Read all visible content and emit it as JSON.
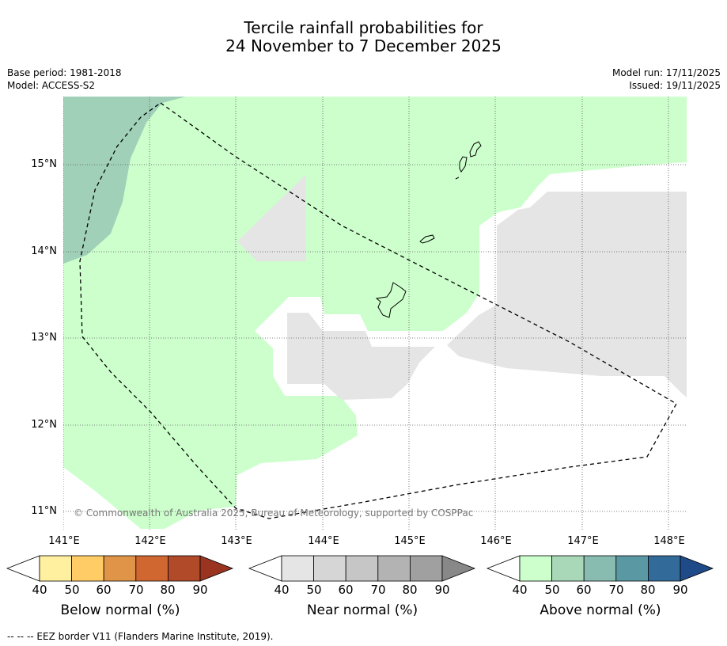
{
  "title": {
    "line1": "Tercile rainfall probabilities for",
    "line2": "24 November to 7 December 2025"
  },
  "meta": {
    "base_period": "Base period: 1981-2018",
    "model": "Model: ACCESS-S2",
    "model_run": "Model run: 17/11/2025",
    "issued": "Issued: 19/11/2025"
  },
  "map": {
    "lat_labels": [
      "15°N",
      "14°N",
      "13°N",
      "12°N",
      "11°N"
    ],
    "lon_labels": [
      "141°E",
      "142°E",
      "143°E",
      "144°E",
      "145°E",
      "146°E",
      "147°E",
      "148°E"
    ],
    "copyright": "© Commonwealth of Australia 2025, Bureau of Meteorology, supported by COSPPac",
    "colors": {
      "above_40": "#ccffcc",
      "above_50": "#a0d0b8",
      "near_40": "#e5e5e5",
      "land_outline": "#000000",
      "eez_line": "#000000",
      "grid": "#555555"
    }
  },
  "legends": [
    {
      "name": "below",
      "label": "Below normal (%)",
      "ticks": [
        "40",
        "50",
        "60",
        "70",
        "80",
        "90"
      ],
      "colors": [
        "#ffffff",
        "#fff0a0",
        "#ffcc66",
        "#e09448",
        "#d06630",
        "#b04a28",
        "#9a3420"
      ]
    },
    {
      "name": "near",
      "label": "Near normal (%)",
      "ticks": [
        "40",
        "50",
        "60",
        "70",
        "80",
        "90"
      ],
      "colors": [
        "#ffffff",
        "#e5e5e5",
        "#d6d6d6",
        "#c6c6c6",
        "#b3b3b3",
        "#a0a0a0",
        "#888888"
      ]
    },
    {
      "name": "above",
      "label": "Above normal (%)",
      "ticks": [
        "40",
        "50",
        "60",
        "70",
        "80",
        "90"
      ],
      "colors": [
        "#ffffff",
        "#ccffcc",
        "#a8d8b8",
        "#88bcb0",
        "#5a98a4",
        "#326a9a",
        "#1e4a88"
      ]
    }
  ],
  "footer": "--  --  -- EEZ border V11 (Flanders Marine Institute, 2019)."
}
